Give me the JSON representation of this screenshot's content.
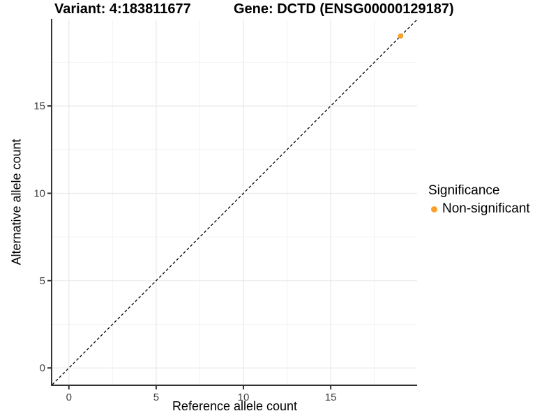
{
  "titles": {
    "variant": "Variant: 4:183811677",
    "gene": "Gene: DCTD (ENSG00000129187)"
  },
  "chart_data": {
    "type": "scatter",
    "xlabel": "Reference allele count",
    "ylabel": "Alternative allele count",
    "xlim": [
      -0.95,
      19.95
    ],
    "ylim": [
      -0.95,
      19.95
    ],
    "x_ticks": [
      0,
      5,
      10,
      15
    ],
    "x_tick_labels": [
      "0",
      "5",
      "10",
      "15"
    ],
    "y_ticks": [
      0,
      5,
      10,
      15
    ],
    "y_tick_labels": [
      "0",
      "5",
      "10",
      "15"
    ],
    "x_minor_ticks": [
      2.5,
      7.5,
      12.5,
      17.5
    ],
    "y_minor_ticks": [
      2.5,
      7.5,
      12.5,
      17.5
    ],
    "grid": "major+minor",
    "series": [
      {
        "name": "Non-significant",
        "color": "#F9A12B",
        "points": [
          {
            "x": 19,
            "y": 19
          }
        ]
      }
    ],
    "reference_line": {
      "type": "identity y=x",
      "style": "dashed",
      "color": "#000000"
    },
    "legend": {
      "title": "Significance",
      "position": "right",
      "items": [
        {
          "label": "Non-significant",
          "color": "#F9A12B"
        }
      ]
    },
    "style": {
      "grid_major_color": "#E9E9E9",
      "grid_minor_color": "#F3F3F3",
      "axis_line_color": "#333333",
      "tick_mark_color": "#333333",
      "tick_label_color": "#404040",
      "background": "#FFFFFF",
      "point_radius": 3.8
    }
  }
}
